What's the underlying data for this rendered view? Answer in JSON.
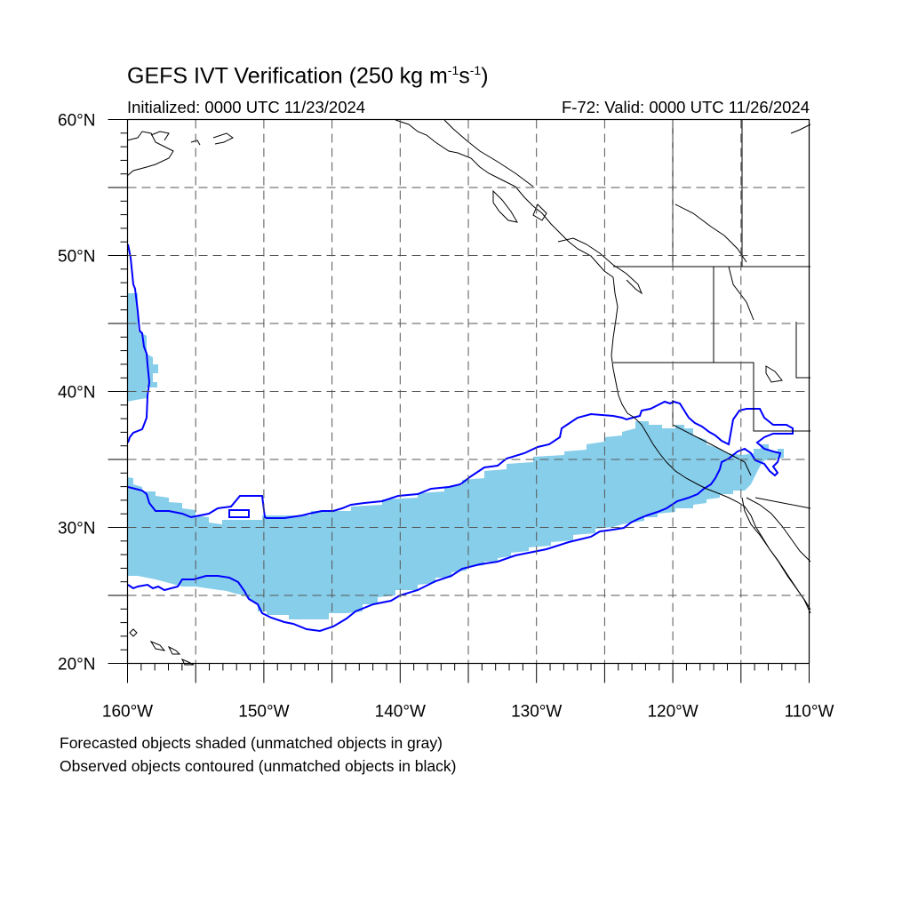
{
  "title": {
    "main": "GEFS IVT Verification (250 kg m",
    "exp1": "-1",
    "mid": "s",
    "exp2": "-1",
    "tail": ")"
  },
  "subtitle": {
    "initialized": "Initialized: 0000 UTC 11/23/2024",
    "valid": "F-72: Valid: 0000 UTC 11/26/2024"
  },
  "notes": [
    "Forecasted objects shaded (unmatched objects in gray)",
    "Observed objects contoured (unmatched objects in black)"
  ],
  "map": {
    "lon_range": [
      -160,
      -110
    ],
    "lat_range": [
      20,
      60
    ],
    "lat_labels": [
      {
        "lat": 60,
        "text": "60°N"
      },
      {
        "lat": 50,
        "text": "50°N"
      },
      {
        "lat": 40,
        "text": "40°N"
      },
      {
        "lat": 30,
        "text": "30°N"
      },
      {
        "lat": 20,
        "text": "20°N"
      }
    ],
    "lon_labels": [
      {
        "lon": -160,
        "text": "160°W"
      },
      {
        "lon": -150,
        "text": "150°W"
      },
      {
        "lon": -140,
        "text": "140°W"
      },
      {
        "lon": -130,
        "text": "130°W"
      },
      {
        "lon": -120,
        "text": "120°W"
      },
      {
        "lon": -110,
        "text": "110°W"
      }
    ],
    "gridlines": "dashed every 5°",
    "colors": {
      "forecast_fill": "#87ceeb",
      "observed_contour": "#0000ff",
      "coastline": "#000000",
      "grid": "#555555"
    }
  }
}
